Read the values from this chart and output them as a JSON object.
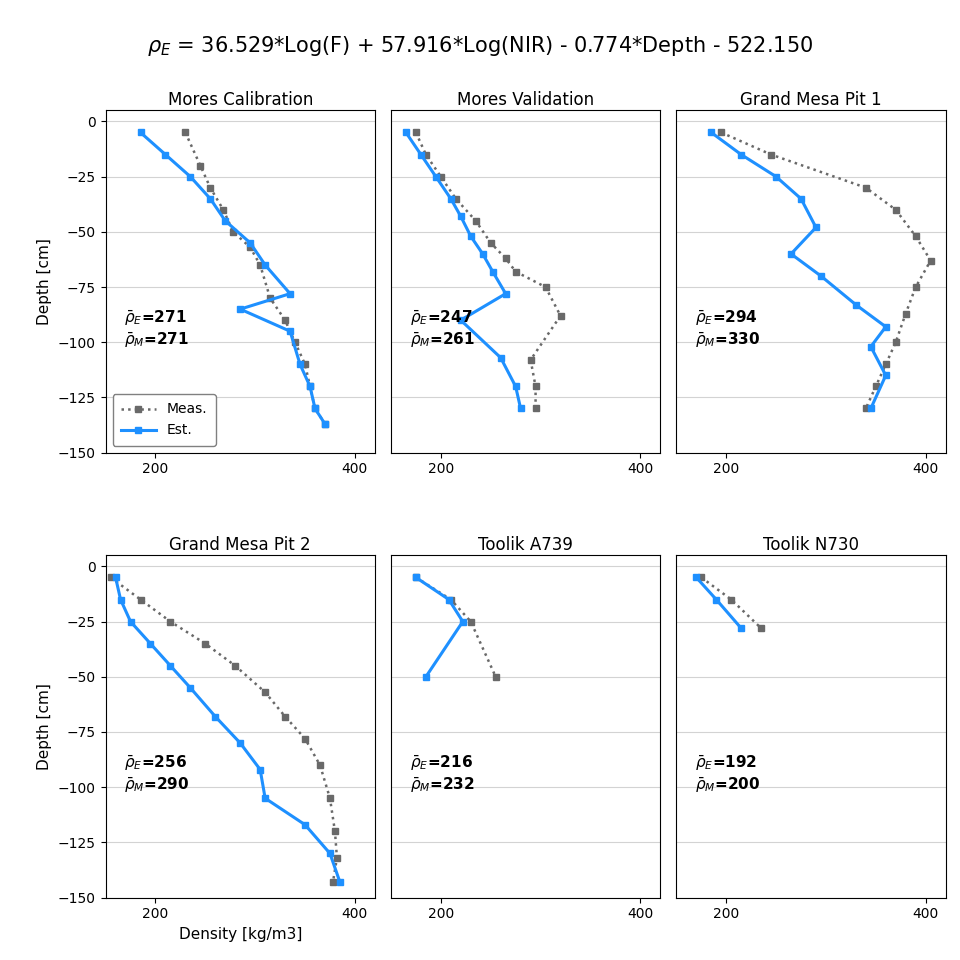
{
  "title": "$\\rho_E$ = 36.529*Log(F) + 57.916*Log(NIR) - 0.774*Depth - 522.150",
  "subplots": [
    {
      "title": "Mores Calibration",
      "rho_E": 271,
      "rho_M": 271,
      "show_legend": true,
      "show_ylabel": true,
      "show_xlabel": true,
      "meas_depth": [
        -5,
        -20,
        -30,
        -40,
        -50,
        -57,
        -65,
        -80,
        -90,
        -100,
        -110,
        -120,
        -130,
        -137
      ],
      "meas_density": [
        230,
        245,
        255,
        268,
        278,
        295,
        305,
        315,
        330,
        340,
        350,
        355,
        360,
        370
      ],
      "est_depth": [
        -5,
        -15,
        -25,
        -35,
        -45,
        -55,
        -65,
        -78,
        -85,
        -95,
        -110,
        -120,
        -130,
        -137
      ],
      "est_density": [
        185,
        210,
        235,
        255,
        270,
        295,
        310,
        335,
        285,
        335,
        345,
        355,
        360,
        370
      ]
    },
    {
      "title": "Mores Validation",
      "rho_E": 247,
      "rho_M": 261,
      "show_legend": false,
      "show_ylabel": false,
      "show_xlabel": false,
      "meas_depth": [
        -5,
        -15,
        -25,
        -35,
        -45,
        -55,
        -62,
        -68,
        -75,
        -88,
        -108,
        -120,
        -130
      ],
      "meas_density": [
        175,
        185,
        200,
        215,
        235,
        250,
        265,
        275,
        305,
        320,
        290,
        295,
        295
      ],
      "est_depth": [
        -5,
        -15,
        -25,
        -35,
        -43,
        -52,
        -60,
        -68,
        -78,
        -90,
        -107,
        -120,
        -130
      ],
      "est_density": [
        165,
        180,
        195,
        210,
        220,
        230,
        242,
        252,
        265,
        220,
        260,
        275,
        280
      ]
    },
    {
      "title": "Grand Mesa Pit 1",
      "rho_E": 294,
      "rho_M": 330,
      "show_legend": false,
      "show_ylabel": false,
      "show_xlabel": false,
      "meas_depth": [
        -5,
        -15,
        -30,
        -40,
        -52,
        -63,
        -75,
        -87,
        -100,
        -110,
        -120,
        -130
      ],
      "meas_density": [
        195,
        245,
        340,
        370,
        390,
        405,
        390,
        380,
        370,
        360,
        350,
        340
      ],
      "est_depth": [
        -5,
        -15,
        -25,
        -35,
        -48,
        -60,
        -70,
        -83,
        -93,
        -102,
        -115,
        -130
      ],
      "est_density": [
        185,
        215,
        250,
        275,
        290,
        265,
        295,
        330,
        360,
        345,
        360,
        345
      ]
    },
    {
      "title": "Grand Mesa Pit 2",
      "rho_E": 256,
      "rho_M": 290,
      "show_legend": false,
      "show_ylabel": false,
      "show_xlabel": false,
      "meas_depth": [
        -5,
        -15,
        -25,
        -35,
        -45,
        -57,
        -68,
        -78,
        -90,
        -105,
        -120,
        -132,
        -143
      ],
      "meas_density": [
        155,
        185,
        215,
        250,
        280,
        310,
        330,
        350,
        365,
        375,
        380,
        382,
        378
      ],
      "est_depth": [
        -5,
        -15,
        -25,
        -35,
        -45,
        -55,
        -68,
        -80,
        -92,
        -105,
        -117,
        -130,
        -143
      ],
      "est_density": [
        160,
        165,
        175,
        195,
        215,
        235,
        260,
        285,
        305,
        310,
        350,
        375,
        385
      ]
    },
    {
      "title": "Toolik A739",
      "rho_E": 216,
      "rho_M": 232,
      "show_legend": false,
      "show_ylabel": false,
      "show_xlabel": false,
      "meas_depth": [
        -5,
        -15,
        -25,
        -50
      ],
      "meas_density": [
        175,
        210,
        230,
        255
      ],
      "est_depth": [
        -5,
        -15,
        -25,
        -50
      ],
      "est_density": [
        175,
        208,
        222,
        185
      ]
    },
    {
      "title": "Toolik N730",
      "rho_E": 192,
      "rho_M": 200,
      "show_legend": false,
      "show_ylabel": false,
      "show_xlabel": false,
      "meas_depth": [
        -5,
        -15,
        -28
      ],
      "meas_density": [
        175,
        205,
        235
      ],
      "est_depth": [
        -5,
        -15,
        -28
      ],
      "est_density": [
        170,
        190,
        215
      ]
    }
  ],
  "est_color": "#1E90FF",
  "meas_color": "#696969",
  "xlim": [
    150,
    420
  ],
  "ylim": [
    -150,
    5
  ],
  "yticks": [
    0,
    -25,
    -50,
    -75,
    -100,
    -125,
    -150
  ],
  "xticks": [
    200,
    400
  ]
}
